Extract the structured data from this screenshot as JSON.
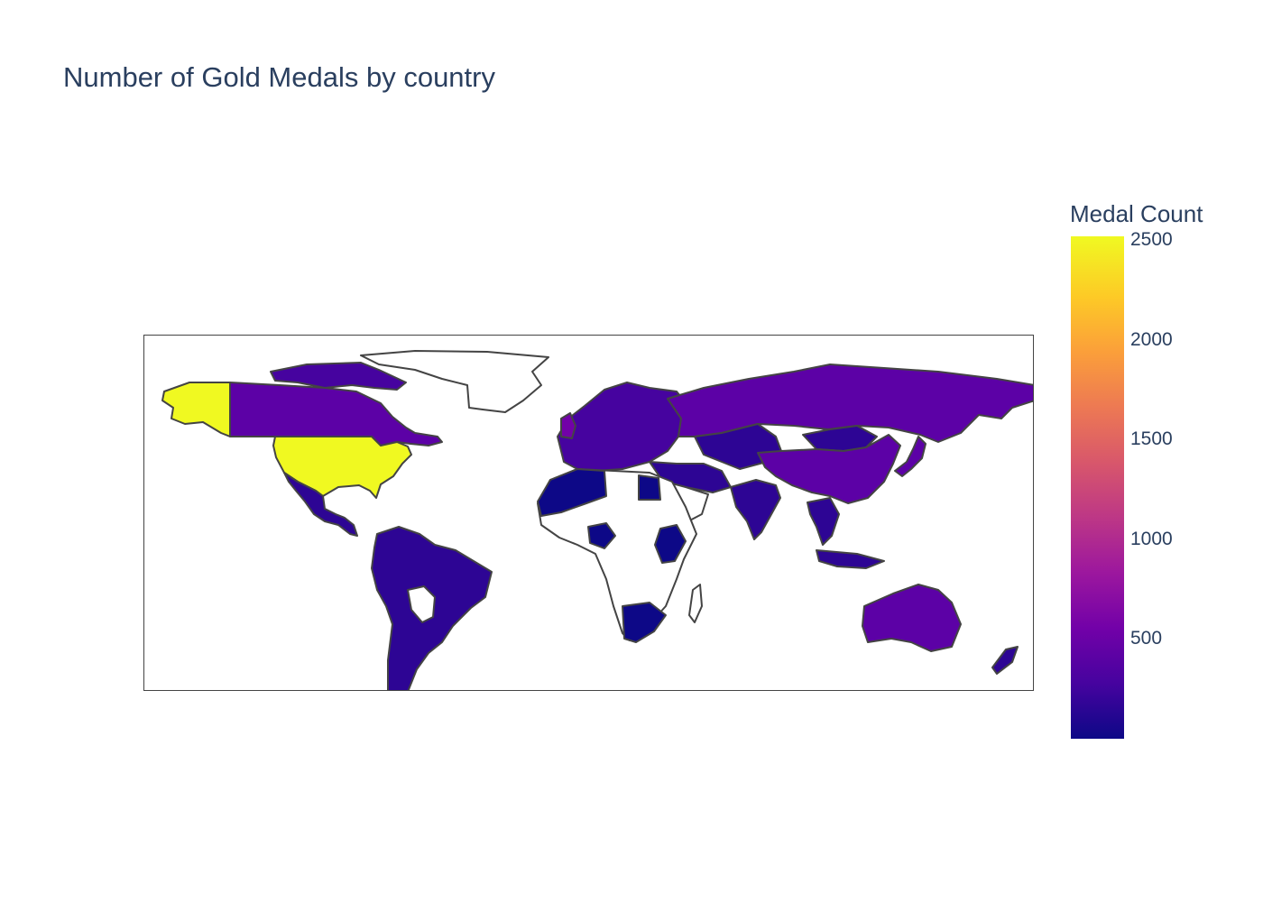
{
  "title": "Number of Gold Medals by country",
  "colorbar": {
    "title": "Medal Count",
    "ticks": [
      "2500",
      "2000",
      "1500",
      "1000",
      "500"
    ],
    "tick_values": [
      2500,
      2000,
      1500,
      1000,
      500
    ],
    "range": [
      0,
      2520
    ],
    "colorscale": "Plasma"
  },
  "map": {
    "projection": "equirectangular",
    "border_color": "#444444",
    "no_data_fill": "#ffffff"
  },
  "colors": {
    "highest": "#f0f921",
    "mid_high": "#5c01a6",
    "mid": "#46039f",
    "low": "#2d0594",
    "lowest": "#0d0887"
  }
}
